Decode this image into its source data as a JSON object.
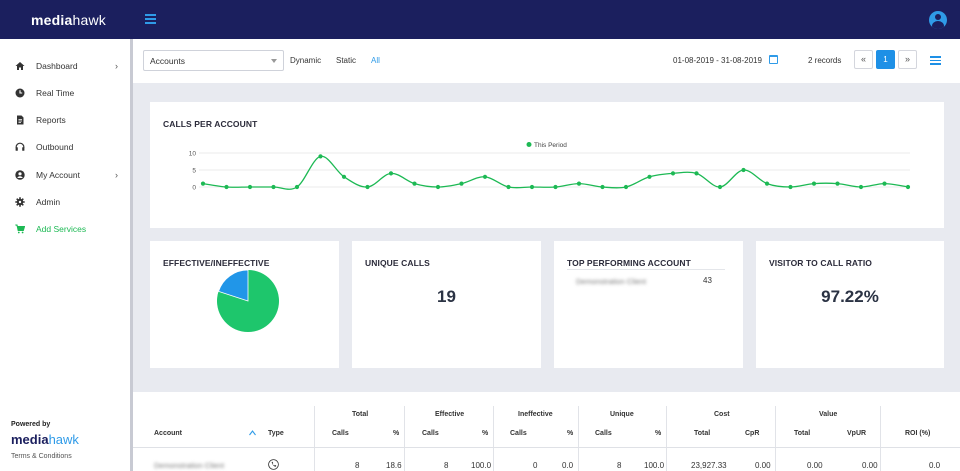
{
  "header": {
    "brand_bold": "media",
    "brand_light": "hawk"
  },
  "sidebar": {
    "items": [
      {
        "label": "Dashboard",
        "icon": "home-icon",
        "chevron": "›"
      },
      {
        "label": "Real Time",
        "icon": "clock-icon",
        "chevron": ""
      },
      {
        "label": "Reports",
        "icon": "document-icon",
        "chevron": ""
      },
      {
        "label": "Outbound",
        "icon": "headset-icon",
        "chevron": ""
      },
      {
        "label": "My Account",
        "icon": "user-icon",
        "chevron": "›"
      },
      {
        "label": "Admin",
        "icon": "gear-icon",
        "chevron": ""
      },
      {
        "label": "Add Services",
        "icon": "cart-icon",
        "chevron": ""
      }
    ],
    "powered_by": "Powered by",
    "footer_brand_bold": "media",
    "footer_brand_light": "hawk",
    "terms": "Terms & Conditions"
  },
  "filters": {
    "account_select": "Accounts",
    "tabs": [
      "Dynamic",
      "Static",
      "All"
    ],
    "active_tab": "All",
    "date_range": "01-08-2019 - 31-08-2019",
    "records": "2 records",
    "pager": {
      "first": "«",
      "current": "1",
      "last": "»"
    }
  },
  "calls_card": {
    "title": "CALLS PER ACCOUNT"
  },
  "chart_data": {
    "type": "line",
    "title": "CALLS PER ACCOUNT",
    "series": [
      {
        "name": "This Period",
        "color": "#1db954",
        "values": [
          1,
          0,
          0,
          0,
          0,
          9,
          3,
          0,
          4,
          1,
          0,
          1,
          3,
          0,
          0,
          0,
          1,
          0,
          0,
          3,
          4,
          4,
          0,
          5,
          1,
          0,
          1,
          1,
          0,
          1,
          0
        ]
      }
    ],
    "x": [
      1,
      2,
      3,
      4,
      5,
      6,
      7,
      8,
      9,
      10,
      11,
      12,
      13,
      14,
      15,
      16,
      17,
      18,
      19,
      20,
      21,
      22,
      23,
      24,
      25,
      26,
      27,
      28,
      29,
      30,
      31
    ],
    "yticks": [
      "10",
      "5",
      "0"
    ],
    "ylim": [
      0,
      10
    ],
    "grid": true,
    "legend": "top-center"
  },
  "effective_card": {
    "title": "EFFECTIVE/INEFFECTIVE",
    "effective_pct": 80,
    "ineffective_pct": 20,
    "colors": {
      "effective": "#1ec66c",
      "ineffective": "#2196e8"
    }
  },
  "unique_card": {
    "title": "UNIQUE CALLS",
    "value": "19"
  },
  "top_card": {
    "title": "TOP PERFORMING ACCOUNT",
    "account": "Demonstration Client",
    "value": "43"
  },
  "ratio_card": {
    "title": "VISITOR TO CALL RATIO",
    "value": "97.22%"
  },
  "table": {
    "group_headers": [
      "Total",
      "Effective",
      "Ineffective",
      "Unique",
      "Cost",
      "Value"
    ],
    "columns": [
      "Account",
      "Type",
      "Calls",
      "%",
      "Calls",
      "%",
      "Calls",
      "%",
      "Calls",
      "%",
      "Total",
      "CpR",
      "Total",
      "VpUR",
      "ROI (%)"
    ],
    "rows": [
      [
        "Demonstration Client",
        "",
        "8",
        "18.6",
        "8",
        "100.0",
        "0",
        "0.0",
        "8",
        "100.0",
        "23,927.33",
        "0.00",
        "0.00",
        "0.00",
        "0.0"
      ]
    ]
  }
}
